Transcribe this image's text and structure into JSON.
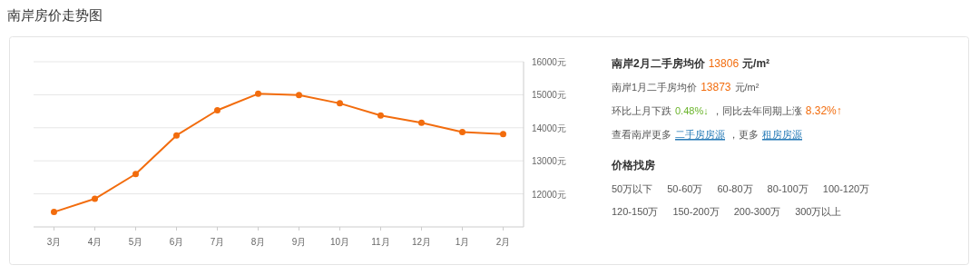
{
  "chart_data": [
    {
      "type": "line",
      "title": "南岸房价走势图",
      "categories": [
        "3月",
        "4月",
        "5月",
        "6月",
        "7月",
        "8月",
        "9月",
        "10月",
        "11月",
        "12月",
        "1月",
        "2月"
      ],
      "series": [
        {
          "color": "#f26c0d",
          "values": [
            11450,
            11850,
            12600,
            13770,
            14530,
            15030,
            14990,
            14740,
            14370,
            14150,
            13873,
            13806
          ]
        }
      ],
      "ylim": [
        11000,
        16000
      ],
      "yticks": [
        {
          "value": 12000,
          "label": "12000元"
        },
        {
          "value": 13000,
          "label": "13000元"
        },
        {
          "value": 14000,
          "label": "14000元"
        },
        {
          "value": 15000,
          "label": "15000元"
        },
        {
          "value": 16000,
          "label": "16000元"
        }
      ],
      "grid": "y",
      "marker": "circle",
      "line_style": "solid"
    },
    {
      "type": "other",
      "annotations": [
        "南岸2月二手房均价",
        "13806",
        "元/m²",
        "南岸1月二手房均价",
        "13873",
        "元/m²",
        "环比上月下跌",
        "0.48%↓",
        "，同比去年同期上涨",
        "8.32%↑",
        "查看南岸更多",
        "二手房房源",
        "，更多",
        "租房房源",
        "价格找房",
        "50万以下",
        "50-60万",
        "60-80万",
        "80-100万",
        "100-120万",
        "120-150万",
        "150-200万",
        "200-300万",
        "300万以上"
      ]
    }
  ]
}
